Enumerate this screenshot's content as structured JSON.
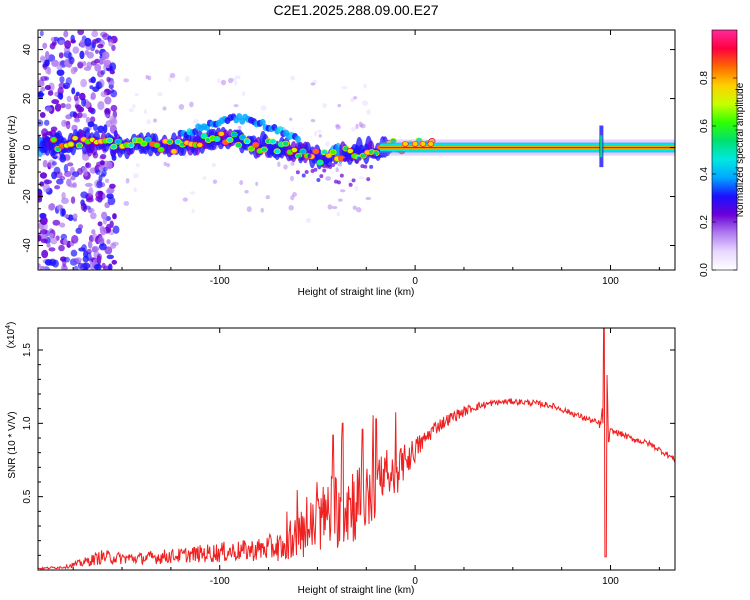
{
  "title": "C2E1.2025.288.09.00.E27",
  "chart_data": [
    {
      "type": "heatmap",
      "name": "spectrogram",
      "xlabel": "Height of straight line (km)",
      "ylabel": "Frequency (Hz)",
      "xlim": [
        -193,
        133
      ],
      "ylim": [
        -50,
        48
      ],
      "xticks": [
        -100,
        0,
        100
      ],
      "xtick_labels": [
        "-100",
        "0",
        "100"
      ],
      "yticks": [
        -40,
        -20,
        0,
        20,
        40
      ],
      "ytick_labels": [
        "-40",
        "-20",
        "0",
        "20",
        "40"
      ],
      "colorbar": {
        "label": "Normalized spectral amplitude",
        "range": [
          0,
          1
        ],
        "ticks": [
          0.0,
          0.2,
          0.4,
          0.6,
          0.8
        ],
        "tick_labels": [
          "0.0",
          "0.2",
          "0.4",
          "0.6",
          "0.8"
        ],
        "colors": [
          "#ffffff",
          "#e8d8ff",
          "#b07cf0",
          "#6a00d8",
          "#1a10ff",
          "#00a8ff",
          "#00e8e0",
          "#00e070",
          "#30ff00",
          "#c8ff00",
          "#ffd000",
          "#ff6a00",
          "#ff0040",
          "#ff2a9a"
        ]
      },
      "ridge": {
        "x": [
          -193,
          -175,
          -160,
          -140,
          -125,
          -110,
          -100,
          -90,
          -80,
          -70,
          -60,
          -50,
          -40,
          -30,
          -20,
          -12,
          0,
          8,
          15,
          40,
          70,
          90,
          95,
          100,
          133
        ],
        "y": [
          1.5,
          2,
          2,
          1,
          0,
          2,
          4,
          3,
          1,
          0,
          -2,
          -4,
          -3,
          -2,
          -1,
          1,
          1,
          1,
          0,
          0,
          0,
          0,
          0,
          0,
          0
        ],
        "upper_branch_x": [
          -120,
          -110,
          -100,
          -90,
          -80,
          -70,
          -60
        ],
        "upper_branch_y": [
          5,
          8,
          11,
          12,
          10,
          7,
          4
        ]
      }
    },
    {
      "type": "line",
      "name": "snr",
      "xlabel": "Height of straight line (km)",
      "ylabel": "SNR (10 * V/V)",
      "exponent_label": "(x10",
      "exponent_power": "4",
      "exponent_close": ")",
      "xlim": [
        -193,
        133
      ],
      "ylim": [
        0,
        1.65
      ],
      "xticks": [
        -100,
        0,
        100
      ],
      "xtick_labels": [
        "-100",
        "0",
        "100"
      ],
      "yticks": [
        0.5,
        1.0,
        1.5
      ],
      "ytick_labels": [
        "0.5",
        "1.0",
        "1.5"
      ],
      "color": "#ee2020",
      "series_envelope": {
        "x": [
          -193,
          -180,
          -170,
          -160,
          -150,
          -140,
          -130,
          -120,
          -110,
          -100,
          -90,
          -80,
          -70,
          -60,
          -50,
          -45,
          -40,
          -35,
          -30,
          -25,
          -20,
          -15,
          -10,
          -5,
          0,
          5,
          10,
          20,
          30,
          40,
          50,
          60,
          70,
          80,
          90,
          95,
          96,
          97,
          98,
          99,
          100,
          105,
          110,
          120,
          125,
          130,
          133
        ],
        "mean": [
          0.01,
          0.02,
          0.05,
          0.09,
          0.08,
          0.08,
          0.09,
          0.1,
          0.11,
          0.12,
          0.13,
          0.14,
          0.16,
          0.22,
          0.32,
          0.38,
          0.42,
          0.45,
          0.47,
          0.5,
          0.55,
          0.6,
          0.66,
          0.74,
          0.82,
          0.89,
          0.97,
          1.05,
          1.11,
          1.14,
          1.15,
          1.14,
          1.12,
          1.07,
          1.02,
          0.99,
          1.1,
          0.3,
          1.4,
          0.85,
          0.95,
          0.93,
          0.9,
          0.86,
          0.82,
          0.78,
          0.75
        ],
        "noise": [
          0.005,
          0.01,
          0.03,
          0.05,
          0.04,
          0.04,
          0.05,
          0.05,
          0.06,
          0.07,
          0.07,
          0.08,
          0.1,
          0.14,
          0.22,
          0.25,
          0.28,
          0.3,
          0.28,
          0.26,
          0.22,
          0.18,
          0.16,
          0.12,
          0.09,
          0.06,
          0.05,
          0.04,
          0.03,
          0.02,
          0.02,
          0.02,
          0.02,
          0.02,
          0.02,
          0.03,
          0.05,
          0.05,
          0.05,
          0.05,
          0.02,
          0.02,
          0.02,
          0.02,
          0.02,
          0.02,
          0.02
        ],
        "peaks": [
          {
            "x": 96.5,
            "y": 1.65
          },
          {
            "x": 97.5,
            "y": 0.09
          },
          {
            "x": -37,
            "y": 1.0
          },
          {
            "x": -42,
            "y": 0.92
          },
          {
            "x": -27,
            "y": 0.96
          },
          {
            "x": -20,
            "y": 1.03
          }
        ]
      }
    }
  ]
}
